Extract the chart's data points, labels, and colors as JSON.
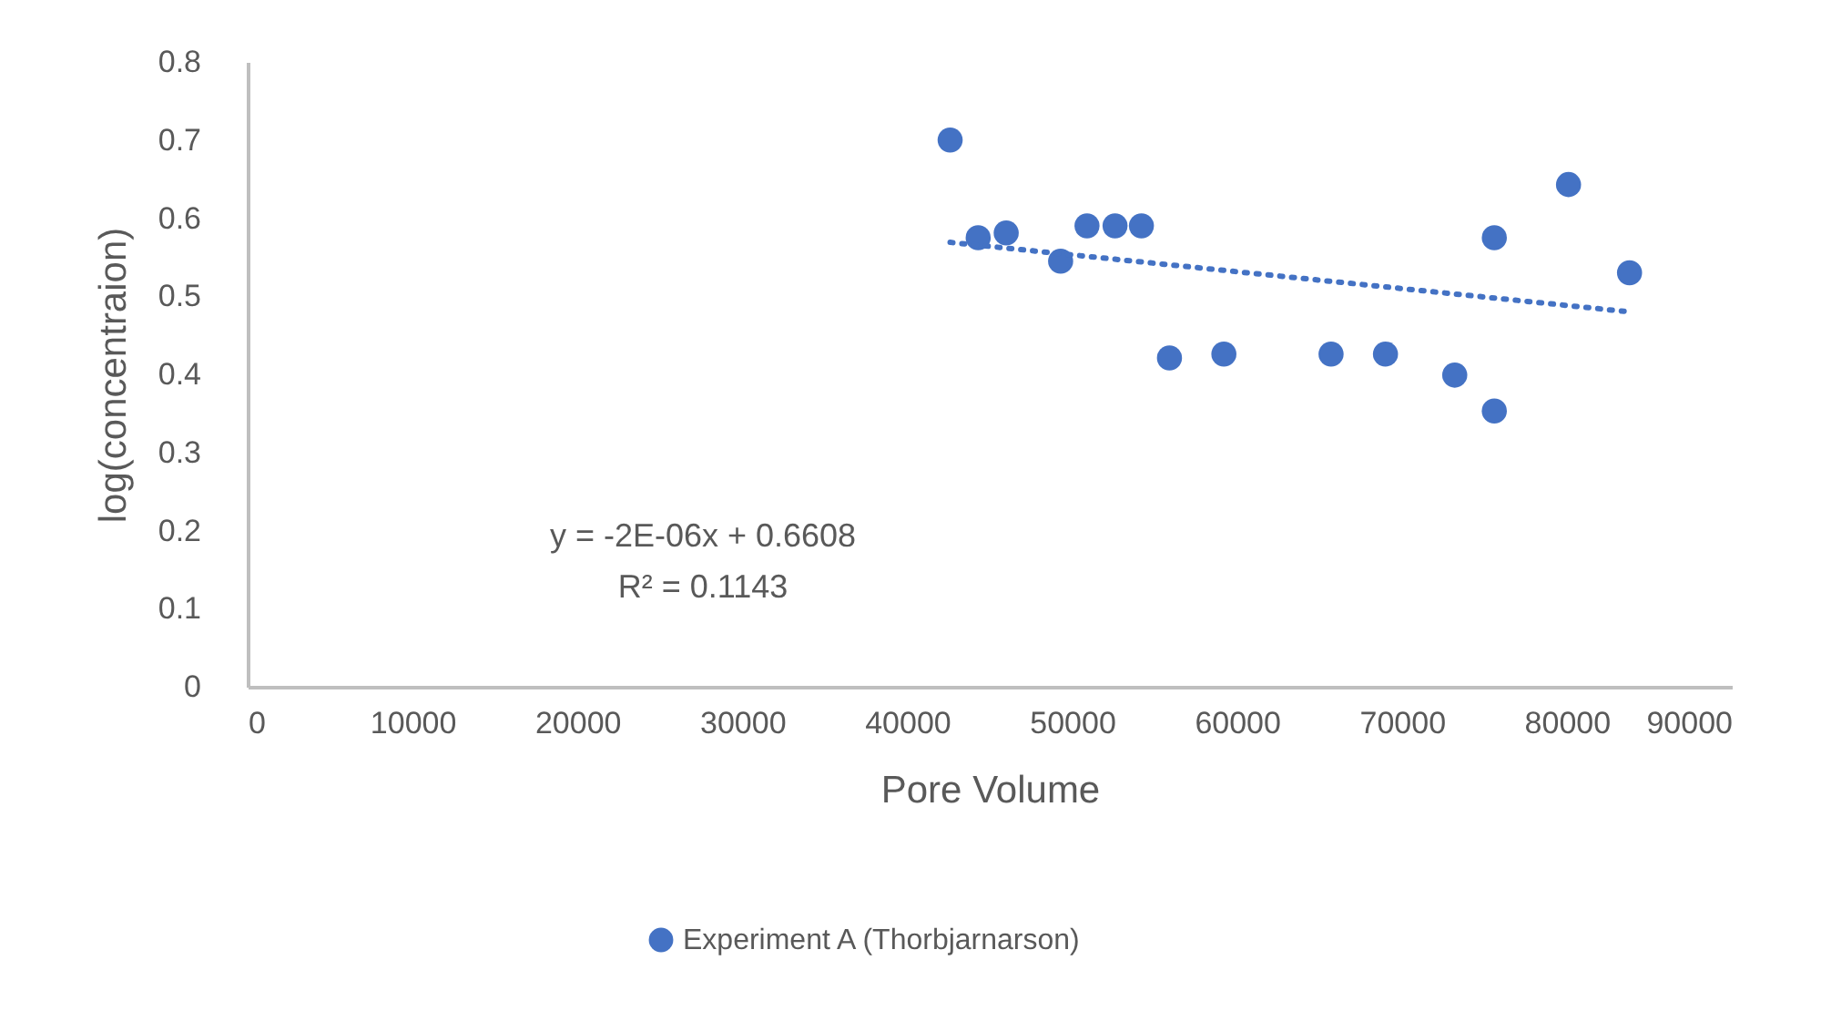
{
  "chart_data": {
    "type": "scatter",
    "xlabel": "Pore Volume",
    "ylabel": "log(concentraion)",
    "xlim": [
      0,
      90000
    ],
    "xticks": [
      0,
      10000,
      20000,
      30000,
      40000,
      50000,
      60000,
      70000,
      80000,
      90000
    ],
    "ylim": [
      0,
      0.8
    ],
    "yticks": [
      0,
      0.1,
      0.2,
      0.3,
      0.4,
      0.5,
      0.6,
      0.7,
      0.8
    ],
    "legend": "bottom",
    "annotations": [
      "y = -2E-06x + 0.6608",
      "R² = 0.1143"
    ],
    "series": [
      {
        "name": "Experiment A (Thorbjarnarson)",
        "color": "#4472c4",
        "marker": "circle",
        "x": [
          42600,
          44300,
          46000,
          49300,
          50900,
          52600,
          54200,
          55900,
          59200,
          65700,
          69000,
          73200,
          75600,
          75600,
          80100,
          83800
        ],
        "values": [
          0.7,
          0.575,
          0.581,
          0.545,
          0.59,
          0.59,
          0.59,
          0.421,
          0.426,
          0.426,
          0.426,
          0.399,
          0.353,
          0.575,
          0.643,
          0.53
        ]
      },
      {
        "type": "line",
        "color": "#4472c4",
        "line_style": "dotted",
        "marker": "none",
        "x": [
          42600,
          83800
        ],
        "values": [
          0.569,
          0.48
        ]
      }
    ]
  }
}
